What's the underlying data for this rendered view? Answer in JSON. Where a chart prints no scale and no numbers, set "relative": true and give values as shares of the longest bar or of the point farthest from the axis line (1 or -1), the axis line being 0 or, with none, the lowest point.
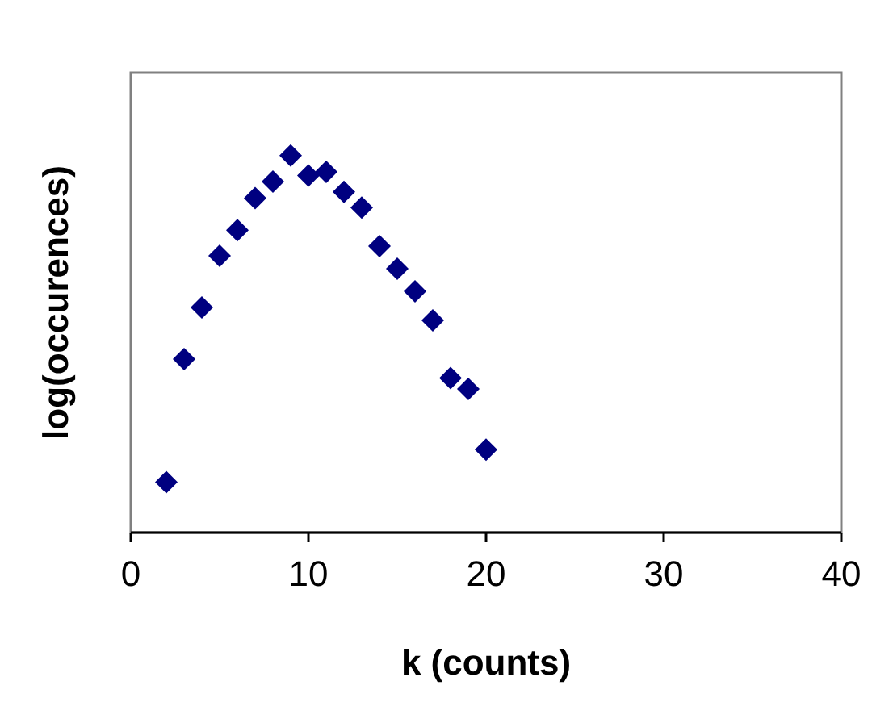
{
  "chart_data": {
    "type": "scatter",
    "xlabel": "k (counts)",
    "ylabel": "log(occurences)",
    "relative": true,
    "marker": "diamond",
    "x": [
      2,
      3,
      4,
      5,
      6,
      7,
      8,
      9,
      10,
      11,
      12,
      13,
      14,
      15,
      16,
      17,
      18,
      19,
      20
    ],
    "series": [
      {
        "color": "#000080",
        "values": [
          0.134,
          0.46,
          0.597,
          0.734,
          0.802,
          0.887,
          0.931,
          1,
          0.947,
          0.957,
          0.904,
          0.862,
          0.76,
          0.7,
          0.64,
          0.563,
          0.41,
          0.381,
          0.22
        ]
      }
    ],
    "xlim": [
      0,
      40
    ],
    "xticks": [
      0,
      10,
      20,
      30,
      40
    ]
  }
}
